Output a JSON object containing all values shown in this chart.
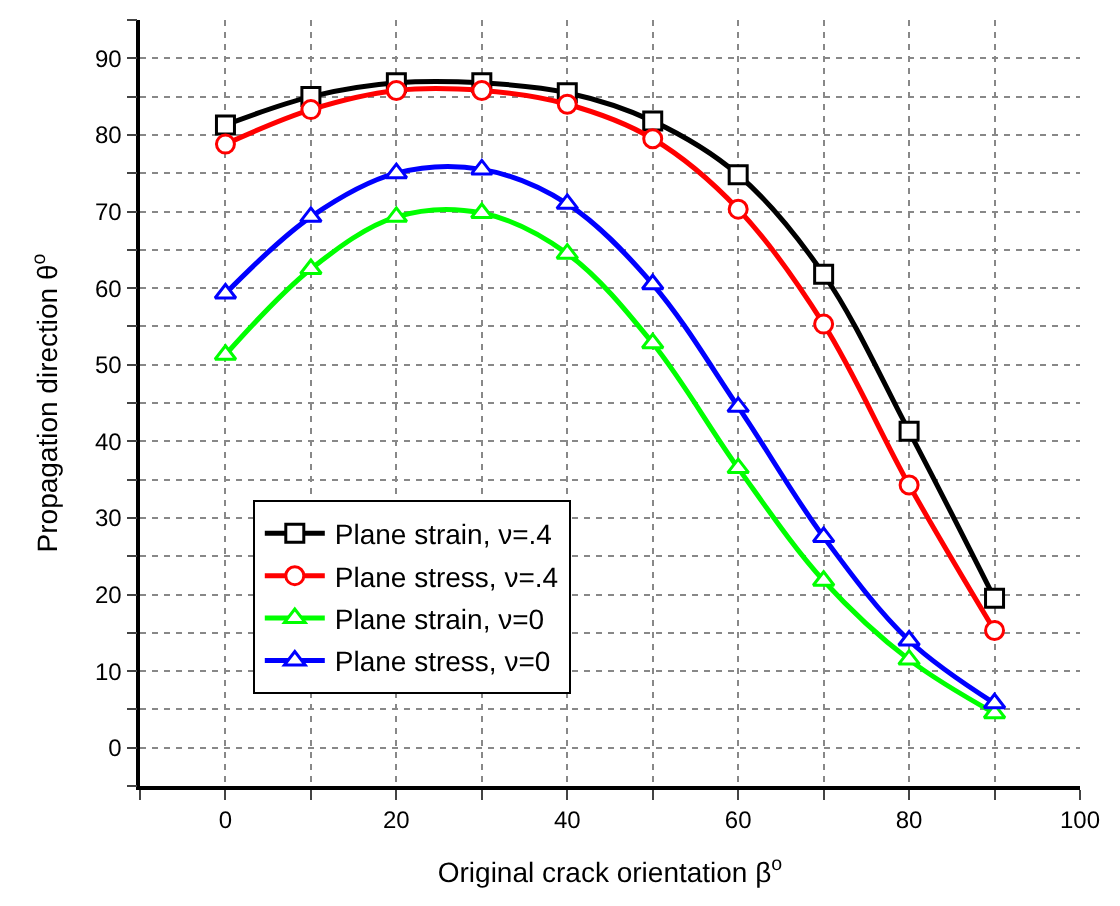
{
  "chart_data": {
    "type": "line",
    "xlabel": "Original crack orientation β$^{o}$",
    "ylabel": "Propagation direction θ$^{o}$",
    "x": [
      0,
      10,
      20,
      30,
      40,
      50,
      60,
      70,
      80,
      90
    ],
    "series": [
      {
        "name": "Plane strain, ν=.4",
        "color": "#000000",
        "marker": "square",
        "values": [
          81.3,
          85,
          86.8,
          86.8,
          85.5,
          81.8,
          74.8,
          61.8,
          41.3,
          19.5
        ]
      },
      {
        "name": "Plane stress, ν=.4",
        "color": "#ff0000",
        "marker": "circle",
        "values": [
          78.8,
          83.3,
          85.8,
          85.8,
          84,
          79.5,
          70.3,
          55.3,
          34.3,
          15.3
        ]
      },
      {
        "name": "Plane strain, ν=0",
        "color": "#00ff00",
        "marker": "triangle",
        "values": [
          51.3,
          62.5,
          69.3,
          69.8,
          64.5,
          52.8,
          36.5,
          21.8,
          11.5,
          4.5
        ]
      },
      {
        "name": "Plane stress, ν=0",
        "color": "#0000ff",
        "marker": "triangle",
        "values": [
          59.3,
          69.3,
          75,
          75.5,
          71,
          60.5,
          44.5,
          27.5,
          14,
          5.8
        ]
      }
    ],
    "xlim": [
      -10,
      100
    ],
    "ylim": [
      -5,
      95
    ],
    "xticks": [
      {
        "value": -10,
        "label": null
      },
      0,
      {
        "value": 10,
        "label": null
      },
      20,
      {
        "value": 30,
        "label": null
      },
      40,
      {
        "value": 50,
        "label": null
      },
      60,
      {
        "value": 70,
        "label": null
      },
      80,
      {
        "value": 90,
        "label": null
      },
      100
    ],
    "yticks": [
      {
        "value": -5,
        "label": null
      },
      0,
      {
        "value": 5,
        "label": null
      },
      10,
      {
        "value": 15,
        "label": null
      },
      20,
      {
        "value": 25,
        "label": null
      },
      30,
      {
        "value": 35,
        "label": null
      },
      40,
      {
        "value": 45,
        "label": null
      },
      50,
      {
        "value": 55,
        "label": null
      },
      60,
      {
        "value": 65,
        "label": null
      },
      70,
      {
        "value": 75,
        "label": null
      },
      80,
      {
        "value": 85,
        "label": null
      },
      90,
      {
        "value": 95,
        "label": null
      }
    ],
    "grid": true,
    "legend": "bottom left",
    "line_style": "solid"
  }
}
